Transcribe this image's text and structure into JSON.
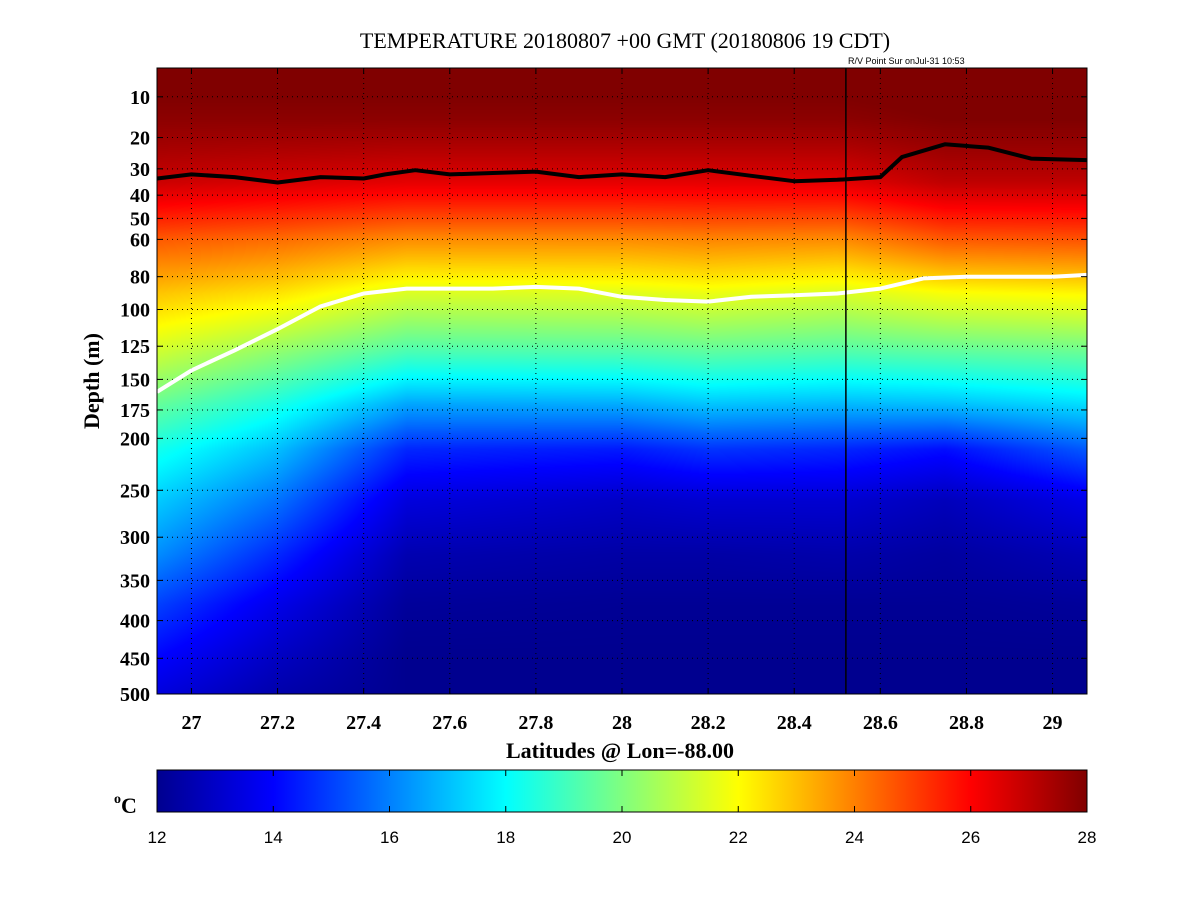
{
  "chart_data": {
    "type": "heatmap",
    "title": "TEMPERATURE 20180807 +00 GMT (20180806 19 CDT)",
    "subtitle": "R/V Point Sur onJul-31 10:53",
    "xlabel": "Latitudes @ Lon=-88.00",
    "ylabel": "Depth (m)",
    "xlim": [
      26.92,
      29.08
    ],
    "ylim_depth_m": [
      5,
      500
    ],
    "y_scale": "sqrt",
    "y_reversed": true,
    "grid": true,
    "grid_style": "dotted",
    "x_ticks": [
      27,
      27.2,
      27.4,
      27.6,
      27.8,
      28,
      28.2,
      28.4,
      28.6,
      28.8,
      29
    ],
    "x_tick_labels": [
      "27",
      "27.2",
      "27.4",
      "27.6",
      "27.8",
      "28",
      "28.2",
      "28.4",
      "28.6",
      "28.8",
      "29"
    ],
    "y_ticks": [
      10,
      20,
      30,
      40,
      50,
      60,
      80,
      100,
      125,
      150,
      175,
      200,
      250,
      300,
      350,
      400,
      450,
      500
    ],
    "y_tick_labels": [
      "10",
      "20",
      "30",
      "40",
      "50",
      "60",
      "80",
      "100",
      "125",
      "150",
      "175",
      "200",
      "250",
      "300",
      "350",
      "400",
      "450",
      "500"
    ],
    "colorbar": {
      "label": "°C",
      "label_sup": "o",
      "label_text": "C",
      "min": 12,
      "max": 28,
      "colormap": "jet",
      "ticks": [
        12,
        14,
        16,
        18,
        20,
        22,
        24,
        26,
        28
      ],
      "tick_labels": [
        "12",
        "14",
        "16",
        "18",
        "20",
        "22",
        "24",
        "26",
        "28"
      ]
    },
    "vertical_marker_lat": 28.52,
    "temperature_profiles": [
      {
        "lat": 26.92,
        "depths": [
          0,
          15,
          35,
          60,
          90,
          130,
          170,
          210,
          260,
          320,
          380,
          450,
          500
        ],
        "temps": [
          28.4,
          27.8,
          26.8,
          24.6,
          22.9,
          21.2,
          19.6,
          18.3,
          17.2,
          16.2,
          15.0,
          14.0,
          13.4
        ]
      },
      {
        "lat": 27.2,
        "depths": [
          0,
          15,
          35,
          60,
          90,
          130,
          170,
          210,
          260,
          320,
          380,
          450,
          500
        ],
        "temps": [
          28.4,
          27.8,
          26.6,
          24.3,
          22.4,
          20.2,
          18.4,
          17.0,
          15.8,
          14.6,
          13.6,
          12.9,
          12.5
        ]
      },
      {
        "lat": 27.5,
        "depths": [
          0,
          15,
          35,
          60,
          90,
          130,
          170,
          210,
          260,
          320,
          380,
          450,
          500
        ],
        "temps": [
          28.4,
          27.8,
          26.4,
          23.8,
          21.4,
          19.1,
          16.6,
          14.6,
          13.4,
          12.6,
          12.2,
          12.0,
          12.0
        ]
      },
      {
        "lat": 28.0,
        "depths": [
          0,
          15,
          35,
          60,
          90,
          130,
          170,
          210,
          260,
          320,
          380,
          450,
          500
        ],
        "temps": [
          28.4,
          27.8,
          26.4,
          23.8,
          21.5,
          19.2,
          16.7,
          14.4,
          13.0,
          12.4,
          12.1,
          12.0,
          12.0
        ]
      },
      {
        "lat": 28.2,
        "depths": [
          0,
          15,
          35,
          60,
          90,
          130,
          170,
          210,
          260,
          320,
          380,
          450,
          500
        ],
        "temps": [
          28.4,
          27.8,
          26.4,
          23.9,
          21.7,
          19.4,
          17.1,
          14.8,
          13.2,
          12.4,
          12.1,
          12.0,
          12.0
        ]
      },
      {
        "lat": 28.5,
        "depths": [
          0,
          15,
          35,
          60,
          90,
          130,
          170,
          210,
          260,
          320,
          380,
          450,
          500
        ],
        "temps": [
          28.4,
          27.8,
          26.4,
          23.8,
          21.4,
          19.2,
          16.9,
          14.6,
          13.2,
          12.5,
          12.1,
          12.0,
          12.0
        ]
      },
      {
        "lat": 28.75,
        "depths": [
          0,
          15,
          35,
          60,
          90,
          130,
          170,
          210,
          260,
          320,
          380,
          450,
          500
        ],
        "temps": [
          28.4,
          28.0,
          27.0,
          24.6,
          21.9,
          19.4,
          17.0,
          14.2,
          12.8,
          12.3,
          12.1,
          12.0,
          12.0
        ]
      },
      {
        "lat": 29.08,
        "depths": [
          0,
          15,
          35,
          60,
          90,
          130,
          170,
          210,
          260,
          320,
          380,
          450,
          500
        ],
        "temps": [
          28.4,
          28.0,
          27.0,
          24.7,
          22.1,
          19.6,
          17.5,
          15.4,
          13.6,
          12.7,
          12.2,
          12.0,
          12.0
        ]
      }
    ],
    "contours": [
      {
        "color": "#000000",
        "lat": [
          26.92,
          27.0,
          27.1,
          27.2,
          27.3,
          27.4,
          27.45,
          27.52,
          27.6,
          27.7,
          27.8,
          27.9,
          28.0,
          28.1,
          28.2,
          28.3,
          28.4,
          28.5,
          28.6,
          28.65,
          28.75,
          28.85,
          28.95,
          29.08
        ],
        "depth": [
          33.5,
          32,
          33,
          35,
          33,
          33.5,
          32,
          30.5,
          32,
          31.5,
          31,
          33,
          32,
          33,
          30.5,
          32.5,
          34.5,
          34,
          33,
          26,
          22,
          23,
          26.5,
          27
        ]
      },
      {
        "color": "#ffffff",
        "lat": [
          26.92,
          27.0,
          27.1,
          27.2,
          27.3,
          27.4,
          27.5,
          27.6,
          27.7,
          27.8,
          27.9,
          28.0,
          28.1,
          28.2,
          28.3,
          28.4,
          28.5,
          28.6,
          28.7,
          28.8,
          28.9,
          29.0,
          29.08
        ],
        "depth": [
          160,
          143,
          128,
          113,
          98,
          90,
          87,
          87,
          87,
          86,
          87,
          92,
          94,
          95,
          92,
          91,
          90,
          87,
          81,
          80,
          80,
          80,
          79
        ]
      }
    ]
  }
}
